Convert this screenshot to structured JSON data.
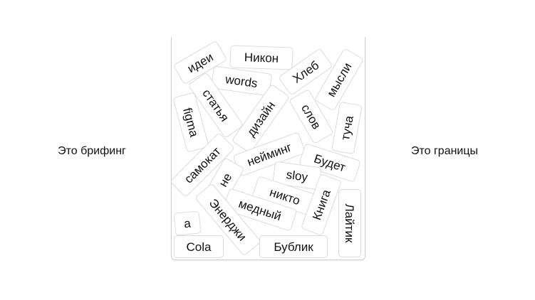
{
  "left_label": "Это брифинг",
  "right_label": "Это границы",
  "words": [
    "идеи",
    "Никон",
    "words",
    "Хлеб",
    "мысли",
    "статья",
    "figma",
    "дизайн",
    "слов",
    "туча",
    "нейминг",
    "самокат",
    "Будет",
    "не",
    "sloy",
    "никто",
    "медный",
    "Книга",
    "Лайтик",
    "Энерджи",
    "a",
    "Cola",
    "Бублик"
  ]
}
